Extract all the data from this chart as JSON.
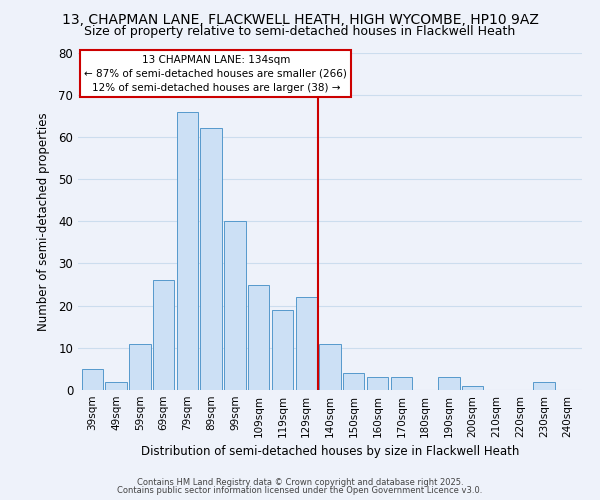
{
  "title_line1": "13, CHAPMAN LANE, FLACKWELL HEATH, HIGH WYCOMBE, HP10 9AZ",
  "title_line2": "Size of property relative to semi-detached houses in Flackwell Heath",
  "xlabel": "Distribution of semi-detached houses by size in Flackwell Heath",
  "ylabel": "Number of semi-detached properties",
  "bar_labels": [
    "39sqm",
    "49sqm",
    "59sqm",
    "69sqm",
    "79sqm",
    "89sqm",
    "99sqm",
    "109sqm",
    "119sqm",
    "129sqm",
    "140sqm",
    "150sqm",
    "160sqm",
    "170sqm",
    "180sqm",
    "190sqm",
    "200sqm",
    "210sqm",
    "220sqm",
    "230sqm",
    "240sqm"
  ],
  "bar_values": [
    5,
    2,
    11,
    26,
    66,
    62,
    40,
    25,
    19,
    22,
    11,
    4,
    3,
    3,
    0,
    3,
    1,
    0,
    0,
    2,
    0
  ],
  "bar_color": "#cce0f5",
  "bar_edge_color": "#5599cc",
  "vline_x": 9.5,
  "vline_color": "#cc0000",
  "annotation_title": "13 CHAPMAN LANE: 134sqm",
  "annotation_line2": "← 87% of semi-detached houses are smaller (266)",
  "annotation_line3": "12% of semi-detached houses are larger (38) →",
  "ylim": [
    0,
    80
  ],
  "yticks": [
    0,
    10,
    20,
    30,
    40,
    50,
    60,
    70,
    80
  ],
  "grid_color": "#ccddee",
  "background_color": "#eef2fa",
  "footer_line1": "Contains HM Land Registry data © Crown copyright and database right 2025.",
  "footer_line2": "Contains public sector information licensed under the Open Government Licence v3.0.",
  "title_fontsize": 10,
  "subtitle_fontsize": 9
}
